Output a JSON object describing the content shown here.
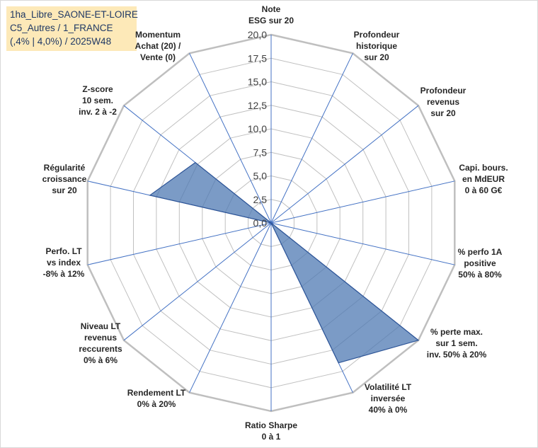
{
  "title_lines": [
    "1ha_Libre_SAONE-ET-LOIRE",
    "C5_Autres / 1_FRANCE",
    "(,4% | 4,0%) / 2025W48"
  ],
  "chart_data": {
    "type": "radar",
    "rlim": [
      0,
      20
    ],
    "ticks": [
      "0,0",
      "2,5",
      "5,0",
      "7,5",
      "10,0",
      "12,5",
      "15,0",
      "17,5",
      "20,0"
    ],
    "grid": true,
    "fill_color": "#4f7ab3",
    "fill_opacity": 0.75,
    "line_color": "#2e5597",
    "grid_color": "#c0c0c0",
    "spoke_color": "#4472c4",
    "axes": [
      {
        "label": [
          "Note",
          "ESG sur 20"
        ],
        "value": 0
      },
      {
        "label": [
          "Profondeur",
          "historique",
          "sur 20"
        ],
        "value": 0
      },
      {
        "label": [
          "Profondeur",
          "revenus",
          "sur 20"
        ],
        "value": 0
      },
      {
        "label": [
          "Capi. bours.",
          "en MdEUR",
          "0 à 60 G€"
        ],
        "value": 0
      },
      {
        "label": [
          "% perfo 1A",
          "positive",
          "50% à 80%"
        ],
        "value": 0
      },
      {
        "label": [
          "% perte max.",
          "sur 1 sem.",
          "inv. 50% à 20%"
        ],
        "value": 20
      },
      {
        "label": [
          "Volatilité LT",
          "inversée",
          "40% à 0%"
        ],
        "value": 16.5
      },
      {
        "label": [
          "Ratio Sharpe",
          "0 à 1"
        ],
        "value": 0
      },
      {
        "label": [
          "Rendement LT",
          "0% à 20%"
        ],
        "value": 0
      },
      {
        "label": [
          "Niveau LT",
          "revenus",
          "reccurents",
          "0% à 6%"
        ],
        "value": 0
      },
      {
        "label": [
          "Perfo. LT",
          "vs index",
          "-8% à 12%"
        ],
        "value": 0
      },
      {
        "label": [
          "Régularité",
          "croissance",
          "sur 20"
        ],
        "value": 13.2
      },
      {
        "label": [
          "Z-score",
          "10 sem.",
          "inv. 2 à -2"
        ],
        "value": 10.3
      },
      {
        "label": [
          "Momentum",
          "Achat (20) /",
          "Vente (0)"
        ],
        "value": 0
      }
    ]
  }
}
